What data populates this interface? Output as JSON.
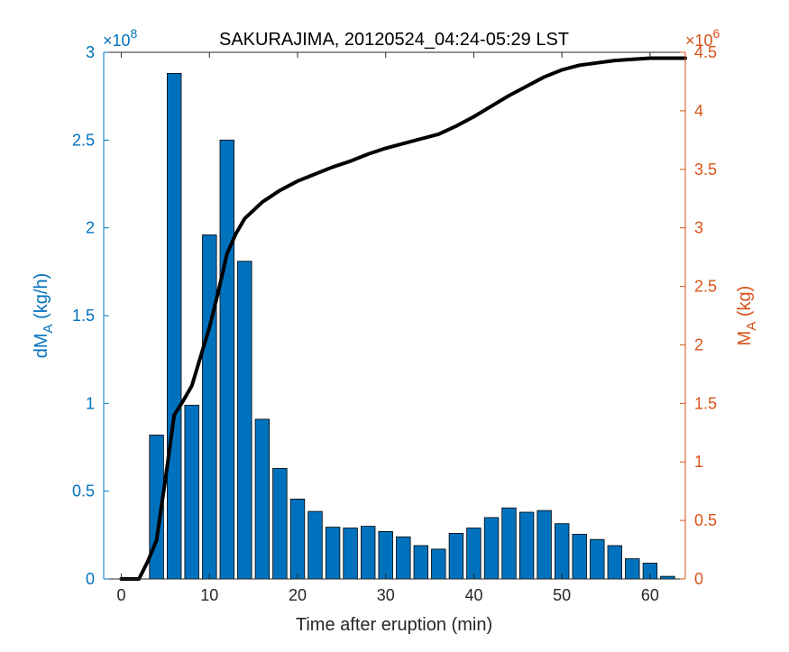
{
  "chart_data": {
    "type": "bar+line",
    "title": "SAKURAJIMA, 20120524_04:24-05:29 LST",
    "xlabel": "Time after eruption (min)",
    "xlim": [
      -2,
      64
    ],
    "xticks": [
      0,
      10,
      20,
      30,
      40,
      50,
      60
    ],
    "xtick_labels": [
      "0",
      "10",
      "20",
      "30",
      "40",
      "50",
      "60"
    ],
    "grid": false,
    "y_left": {
      "label_main": "dM",
      "label_sub": "A",
      "label_unit": " (kg/h)",
      "exponent_base": "×10",
      "exponent_power": "8",
      "ylim": [
        0,
        3
      ],
      "ticks": [
        0,
        0.5,
        1,
        1.5,
        2,
        2.5,
        3
      ],
      "tick_labels": [
        "0",
        "0.5",
        "1",
        "1.5",
        "2",
        "2.5",
        "3"
      ],
      "color": "#0072BD"
    },
    "y_right": {
      "label_main": "M",
      "label_sub": "A",
      "label_unit": " (kg)",
      "exponent_base": "×10",
      "exponent_power": "6",
      "ylim": [
        0,
        4.5
      ],
      "ticks": [
        0,
        0.5,
        1,
        1.5,
        2,
        2.5,
        3,
        3.5,
        4,
        4.5
      ],
      "tick_labels": [
        "0",
        "0.5",
        "1",
        "1.5",
        "2",
        "2.5",
        "3",
        "3.5",
        "4",
        "4.5"
      ],
      "color": "#D95319"
    },
    "bars": {
      "axis": "left",
      "color": "#0072BD",
      "x": [
        4,
        6,
        8,
        10,
        12,
        14,
        16,
        18,
        20,
        22,
        24,
        26,
        28,
        30,
        32,
        34,
        36,
        38,
        40,
        42,
        44,
        46,
        48,
        50,
        52,
        54,
        56,
        58,
        60,
        62
      ],
      "values": [
        0.82,
        2.88,
        0.99,
        1.96,
        2.5,
        1.81,
        0.91,
        0.63,
        0.455,
        0.385,
        0.295,
        0.29,
        0.3,
        0.27,
        0.24,
        0.19,
        0.17,
        0.26,
        0.29,
        0.35,
        0.405,
        0.38,
        0.39,
        0.315,
        0.255,
        0.225,
        0.19,
        0.115,
        0.09,
        0.015
      ]
    },
    "line": {
      "axis": "right",
      "color": "#000000",
      "x": [
        0,
        2,
        3,
        4,
        5,
        6,
        7,
        8,
        9,
        10,
        11,
        12,
        13,
        14,
        16,
        18,
        20,
        22,
        24,
        26,
        28,
        30,
        32,
        34,
        36,
        38,
        40,
        42,
        44,
        46,
        48,
        50,
        52,
        54,
        56,
        58,
        60,
        62,
        64
      ],
      "values": [
        0,
        0,
        0.15,
        0.33,
        0.85,
        1.4,
        1.52,
        1.65,
        1.9,
        2.15,
        2.45,
        2.78,
        2.95,
        3.08,
        3.22,
        3.32,
        3.4,
        3.46,
        3.52,
        3.57,
        3.63,
        3.68,
        3.72,
        3.76,
        3.8,
        3.87,
        3.95,
        4.04,
        4.13,
        4.21,
        4.29,
        4.35,
        4.39,
        4.41,
        4.43,
        4.44,
        4.45,
        4.45,
        4.45
      ]
    }
  }
}
